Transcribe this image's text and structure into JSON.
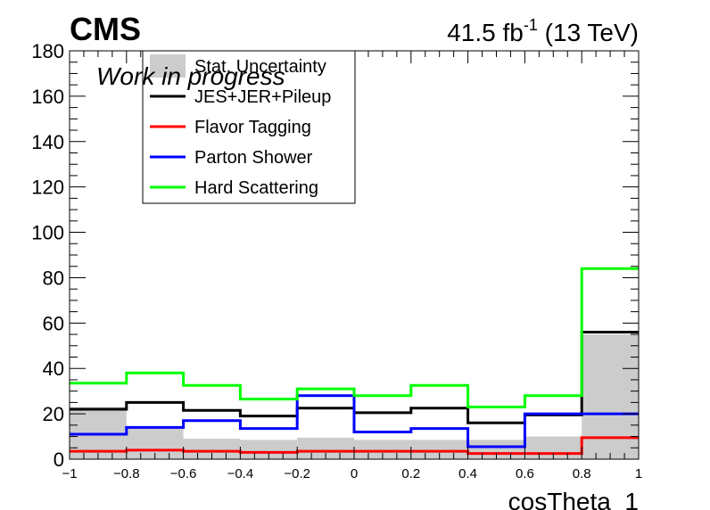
{
  "header": {
    "experiment": "CMS",
    "lumi_value": "41.5 fb",
    "lumi_exponent": "-1",
    "energy": "(13 TeV)",
    "status": "Work in progress"
  },
  "chart_data": {
    "type": "histogram",
    "title": "",
    "xlabel": "cosTheta_1",
    "ylabel": "",
    "xlim": [
      -1,
      1
    ],
    "ylim": [
      0,
      180
    ],
    "bin_edges": [
      -1,
      -0.8,
      -0.6,
      -0.4,
      -0.2,
      0,
      0.2,
      0.4,
      0.6,
      0.8,
      1
    ],
    "x_ticks": [
      -1,
      -0.8,
      -0.6,
      -0.4,
      -0.2,
      0,
      0.2,
      0.4,
      0.6,
      0.8,
      1
    ],
    "x_tick_labels": [
      "−1",
      "−0.8",
      "−0.6",
      "−0.4",
      "−0.2",
      "0",
      "0.2",
      "0.4",
      "0.6",
      "0.8",
      "1"
    ],
    "y_ticks": [
      0,
      20,
      40,
      60,
      80,
      100,
      120,
      140,
      160,
      180
    ],
    "y_tick_labels": [
      "0",
      "20",
      "40",
      "60",
      "80",
      "100",
      "120",
      "140",
      "160",
      "180"
    ],
    "legend_position": "top-left",
    "series": [
      {
        "name": "Stat. Uncertainty",
        "style": "fill",
        "color": "#cccccc",
        "values": [
          23,
          14,
          9,
          8.5,
          9.5,
          8.5,
          8.5,
          8.5,
          10,
          55
        ]
      },
      {
        "name": "JES+JER+Pileup",
        "style": "step",
        "color": "#000000",
        "values": [
          22,
          25,
          21.5,
          19,
          22.5,
          20.5,
          22.5,
          16,
          19.5,
          56
        ]
      },
      {
        "name": "Flavor Tagging",
        "style": "step",
        "color": "#ff0000",
        "values": [
          3.5,
          4,
          3.5,
          3,
          3.5,
          3.5,
          3.5,
          2.5,
          2.5,
          9.5
        ]
      },
      {
        "name": "Parton Shower",
        "style": "step",
        "color": "#0000ff",
        "values": [
          11,
          14,
          17,
          13.5,
          28,
          12,
          13.5,
          5.5,
          20,
          20
        ]
      },
      {
        "name": "Hard Scattering",
        "style": "step",
        "color": "#00ff00",
        "values": [
          33.5,
          38,
          32.5,
          26.5,
          31,
          28,
          32.5,
          23,
          28,
          84
        ]
      }
    ]
  }
}
